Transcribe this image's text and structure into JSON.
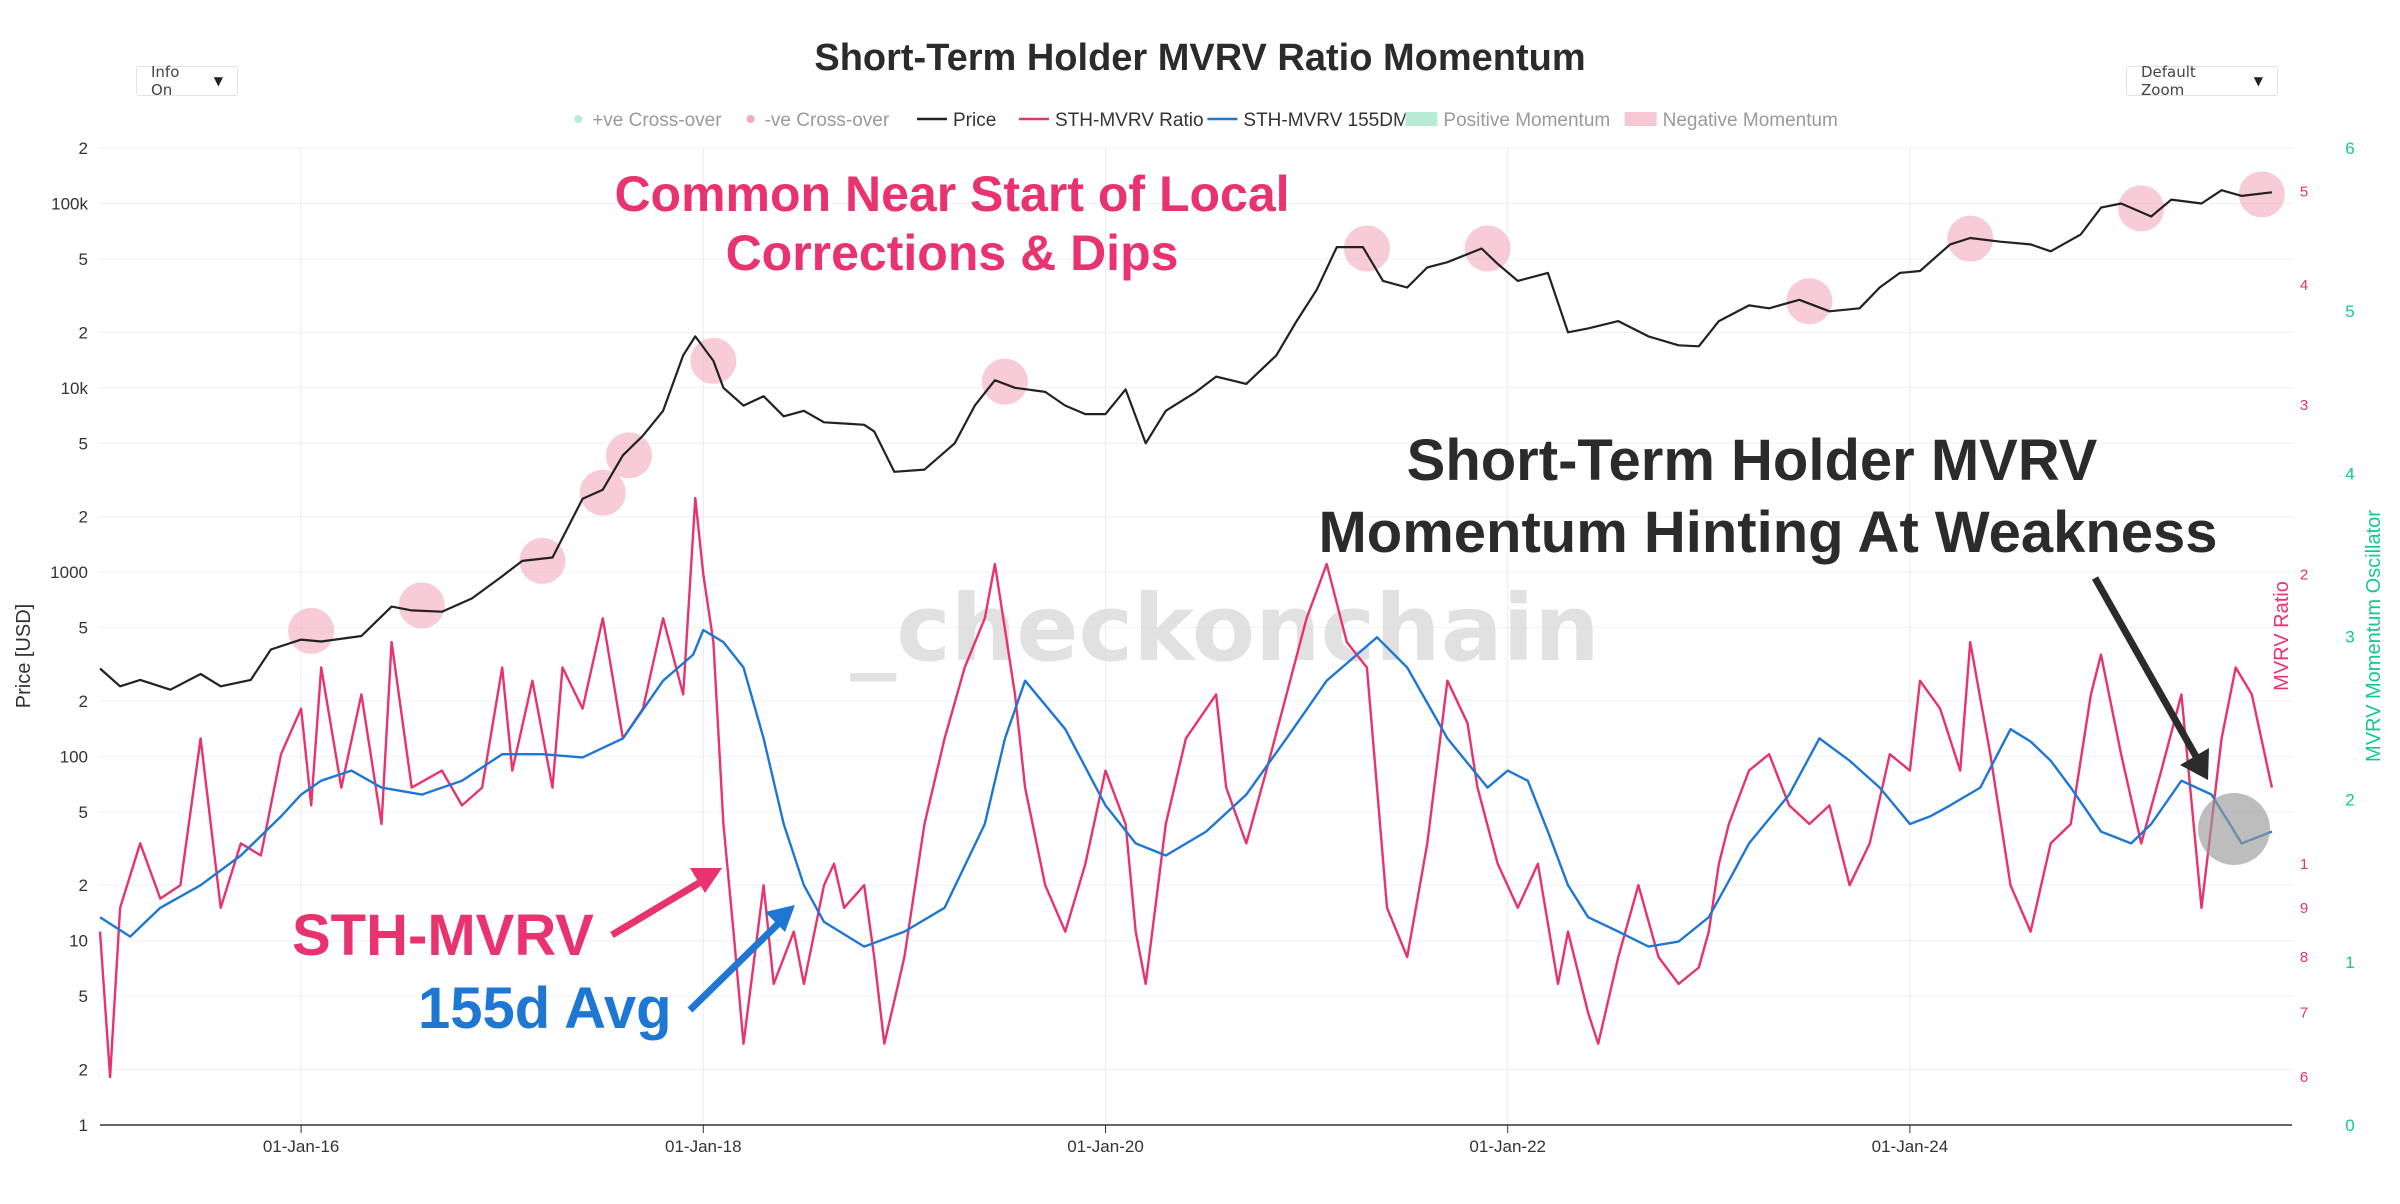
{
  "controls": {
    "info_label": "Info On",
    "zoom_label": "Default Zoom",
    "dropdown_glyph": "▼"
  },
  "chart_data": {
    "type": "line",
    "title": "Short-Term Holder MVRV Ratio Momentum",
    "watermark": "_checkonchain",
    "legend": [
      {
        "label": "+ve Cross-over",
        "kind": "dot",
        "color": "#b8ecd9"
      },
      {
        "label": "-ve Cross-over",
        "kind": "dot",
        "color": "#f7a8c0"
      },
      {
        "label": "Price",
        "kind": "line",
        "color": "#222222"
      },
      {
        "label": "STH-MVRV Ratio",
        "kind": "line",
        "color": "#e8336e"
      },
      {
        "label": "STH-MVRV 155DMA",
        "kind": "line",
        "color": "#1f77d4"
      },
      {
        "label": "Positive Momentum",
        "kind": "box",
        "color": "#b8ecd9"
      },
      {
        "label": "Negative Momentum",
        "kind": "box",
        "color": "#f7c7d6"
      }
    ],
    "legend_placement": "top",
    "grid": true,
    "colors": {
      "price": "#222222",
      "mvrv": "#e8336e",
      "dma": "#1f77d4",
      "oscillator_axis": "#14c98a",
      "negative_marker": "#f4a9c0",
      "annotation_pink": "#e8336e",
      "annotation_blue": "#1f77d4",
      "annotation_dark": "#2b2b2b"
    },
    "x_axis": {
      "tick_labels": [
        "01-Jan-16",
        "01-Jan-18",
        "01-Jan-20",
        "01-Jan-22",
        "01-Jan-24"
      ],
      "tick_years": [
        2016,
        2018,
        2020,
        2022,
        2024
      ],
      "range": [
        2015.0,
        2025.9
      ]
    },
    "y_left": {
      "label": "Price [USD]",
      "scale": "log",
      "range": [
        1,
        200000
      ],
      "ticks": [
        {
          "v": 1,
          "t": "1"
        },
        {
          "v": 2,
          "t": "2"
        },
        {
          "v": 5,
          "t": "5"
        },
        {
          "v": 10,
          "t": "10"
        },
        {
          "v": 20,
          "t": "2"
        },
        {
          "v": 50,
          "t": "5"
        },
        {
          "v": 100,
          "t": "100"
        },
        {
          "v": 200,
          "t": "2"
        },
        {
          "v": 500,
          "t": "5"
        },
        {
          "v": 1000,
          "t": "1000"
        },
        {
          "v": 2000,
          "t": "2"
        },
        {
          "v": 5000,
          "t": "5"
        },
        {
          "v": 10000,
          "t": "10k"
        },
        {
          "v": 20000,
          "t": "2"
        },
        {
          "v": 50000,
          "t": "5"
        },
        {
          "v": 100000,
          "t": "100k"
        },
        {
          "v": 200000,
          "t": "2"
        }
      ]
    },
    "y_right1": {
      "label": "MVRV Ratio",
      "scale": "log",
      "range": [
        0.535,
        5.55
      ],
      "ticks": [
        {
          "v": 0.6,
          "t": "6"
        },
        {
          "v": 0.7,
          "t": "7"
        },
        {
          "v": 0.8,
          "t": "8"
        },
        {
          "v": 0.9,
          "t": "9"
        },
        {
          "v": 1,
          "t": "1"
        },
        {
          "v": 2,
          "t": "2"
        },
        {
          "v": 3,
          "t": "3"
        },
        {
          "v": 4,
          "t": "4"
        },
        {
          "v": 5,
          "t": "5"
        }
      ]
    },
    "y_right2": {
      "label": "MVRV Momentum Oscillator",
      "range": [
        0,
        6
      ],
      "ticks": [
        {
          "v": 0,
          "t": "0"
        },
        {
          "v": 1,
          "t": "1"
        },
        {
          "v": 2,
          "t": "2"
        },
        {
          "v": 3,
          "t": "3"
        },
        {
          "v": 4,
          "t": "4"
        },
        {
          "v": 5,
          "t": "5"
        },
        {
          "v": 6,
          "t": "6"
        }
      ]
    },
    "series": [
      {
        "name": "Price",
        "x": [
          2015.0,
          2015.1,
          2015.2,
          2015.35,
          2015.5,
          2015.6,
          2015.75,
          2015.85,
          2016.0,
          2016.1,
          2016.3,
          2016.45,
          2016.55,
          2016.7,
          2016.85,
          2017.0,
          2017.1,
          2017.25,
          2017.4,
          2017.5,
          2017.6,
          2017.7,
          2017.8,
          2017.9,
          2017.96,
          2018.05,
          2018.1,
          2018.2,
          2018.3,
          2018.4,
          2018.5,
          2018.6,
          2018.7,
          2018.8,
          2018.85,
          2018.95,
          2019.1,
          2019.25,
          2019.35,
          2019.45,
          2019.55,
          2019.7,
          2019.8,
          2019.9,
          2020.0,
          2020.1,
          2020.2,
          2020.3,
          2020.45,
          2020.55,
          2020.7,
          2020.85,
          2020.95,
          2021.05,
          2021.15,
          2021.28,
          2021.38,
          2021.5,
          2021.6,
          2021.7,
          2021.87,
          2021.95,
          2022.05,
          2022.2,
          2022.3,
          2022.4,
          2022.55,
          2022.7,
          2022.85,
          2022.95,
          2023.05,
          2023.2,
          2023.3,
          2023.45,
          2023.6,
          2023.75,
          2023.85,
          2023.95,
          2024.05,
          2024.2,
          2024.3,
          2024.45,
          2024.6,
          2024.7,
          2024.85,
          2024.95,
          2025.05,
          2025.2,
          2025.3,
          2025.45,
          2025.55,
          2025.65,
          2025.8
        ],
        "values": [
          300,
          240,
          260,
          230,
          280,
          240,
          260,
          380,
          430,
          420,
          450,
          650,
          620,
          610,
          720,
          950,
          1150,
          1200,
          2500,
          2800,
          4300,
          5500,
          7500,
          15000,
          19000,
          14000,
          10000,
          8000,
          9000,
          7000,
          7500,
          6500,
          6400,
          6300,
          5800,
          3500,
          3600,
          5000,
          8000,
          11000,
          10000,
          9500,
          8000,
          7200,
          7200,
          9800,
          5000,
          7500,
          9500,
          11500,
          10500,
          15000,
          23000,
          34000,
          58000,
          58000,
          38000,
          35000,
          45000,
          48000,
          57000,
          47000,
          38000,
          42000,
          20000,
          21000,
          23000,
          19000,
          17000,
          16800,
          23000,
          28000,
          27000,
          30000,
          26000,
          27000,
          35000,
          42000,
          43000,
          60000,
          65000,
          62000,
          60000,
          55000,
          68000,
          95000,
          100000,
          85000,
          105000,
          100000,
          118000,
          110000,
          115000
        ]
      },
      {
        "name": "STH-MVRV Ratio",
        "x": [
          2015.0,
          2015.05,
          2015.1,
          2015.2,
          2015.3,
          2015.4,
          2015.5,
          2015.6,
          2015.7,
          2015.8,
          2015.9,
          2016.0,
          2016.05,
          2016.1,
          2016.2,
          2016.3,
          2016.4,
          2016.45,
          2016.55,
          2016.7,
          2016.8,
          2016.9,
          2017.0,
          2017.05,
          2017.15,
          2017.25,
          2017.3,
          2017.4,
          2017.5,
          2017.6,
          2017.7,
          2017.8,
          2017.9,
          2017.96,
          2018.0,
          2018.05,
          2018.1,
          2018.15,
          2018.2,
          2018.3,
          2018.35,
          2018.45,
          2018.5,
          2018.6,
          2018.65,
          2018.7,
          2018.8,
          2018.85,
          2018.9,
          2018.95,
          2019.0,
          2019.1,
          2019.2,
          2019.3,
          2019.4,
          2019.45,
          2019.55,
          2019.6,
          2019.7,
          2019.8,
          2019.9,
          2020.0,
          2020.1,
          2020.15,
          2020.2,
          2020.3,
          2020.4,
          2020.55,
          2020.6,
          2020.7,
          2020.8,
          2020.9,
          2021.0,
          2021.1,
          2021.2,
          2021.3,
          2021.35,
          2021.4,
          2021.5,
          2021.6,
          2021.7,
          2021.8,
          2021.85,
          2021.95,
          2022.05,
          2022.15,
          2022.25,
          2022.3,
          2022.4,
          2022.45,
          2022.55,
          2022.65,
          2022.75,
          2022.85,
          2022.95,
          2023.0,
          2023.05,
          2023.1,
          2023.2,
          2023.3,
          2023.4,
          2023.5,
          2023.6,
          2023.7,
          2023.8,
          2023.9,
          2024.0,
          2024.05,
          2024.15,
          2024.25,
          2024.3,
          2024.4,
          2024.5,
          2024.6,
          2024.7,
          2024.8,
          2024.9,
          2024.95,
          2025.05,
          2025.15,
          2025.25,
          2025.35,
          2025.45,
          2025.55,
          2025.62,
          2025.7,
          2025.8
        ],
        "values": [
          0.85,
          0.6,
          0.9,
          1.05,
          0.92,
          0.95,
          1.35,
          0.9,
          1.05,
          1.02,
          1.3,
          1.45,
          1.15,
          1.6,
          1.2,
          1.5,
          1.1,
          1.7,
          1.2,
          1.25,
          1.15,
          1.2,
          1.6,
          1.25,
          1.55,
          1.2,
          1.6,
          1.45,
          1.8,
          1.35,
          1.45,
          1.8,
          1.5,
          2.4,
          2.0,
          1.7,
          1.1,
          0.85,
          0.65,
          0.95,
          0.75,
          0.85,
          0.75,
          0.95,
          1.0,
          0.9,
          0.95,
          0.8,
          0.65,
          0.72,
          0.8,
          1.1,
          1.35,
          1.6,
          1.8,
          2.05,
          1.5,
          1.2,
          0.95,
          0.85,
          1.0,
          1.25,
          1.1,
          0.85,
          0.75,
          1.1,
          1.35,
          1.5,
          1.2,
          1.05,
          1.25,
          1.5,
          1.8,
          2.05,
          1.7,
          1.6,
          1.2,
          0.9,
          0.8,
          1.05,
          1.55,
          1.4,
          1.2,
          1.0,
          0.9,
          1.0,
          0.75,
          0.85,
          0.7,
          0.65,
          0.8,
          0.95,
          0.8,
          0.75,
          0.78,
          0.85,
          1.0,
          1.1,
          1.25,
          1.3,
          1.15,
          1.1,
          1.15,
          0.95,
          1.05,
          1.3,
          1.25,
          1.55,
          1.45,
          1.25,
          1.7,
          1.3,
          0.95,
          0.85,
          1.05,
          1.1,
          1.5,
          1.65,
          1.3,
          1.05,
          1.25,
          1.5,
          0.9,
          1.35,
          1.6,
          1.5,
          1.2
        ]
      },
      {
        "name": "STH-MVRV 155DMA",
        "x": [
          2015.0,
          2015.15,
          2015.3,
          2015.5,
          2015.7,
          2015.9,
          2016.0,
          2016.1,
          2016.25,
          2016.4,
          2016.6,
          2016.8,
          2017.0,
          2017.2,
          2017.4,
          2017.6,
          2017.8,
          2017.95,
          2018.0,
          2018.1,
          2018.2,
          2018.3,
          2018.4,
          2018.5,
          2018.6,
          2018.8,
          2019.0,
          2019.2,
          2019.4,
          2019.5,
          2019.6,
          2019.8,
          2020.0,
          2020.15,
          2020.3,
          2020.5,
          2020.7,
          2020.9,
          2021.1,
          2021.25,
          2021.35,
          2021.5,
          2021.7,
          2021.9,
          2022.0,
          2022.1,
          2022.2,
          2022.3,
          2022.4,
          2022.55,
          2022.7,
          2022.85,
          2023.0,
          2023.1,
          2023.2,
          2023.4,
          2023.55,
          2023.7,
          2023.85,
          2024.0,
          2024.1,
          2024.2,
          2024.35,
          2024.5,
          2024.6,
          2024.7,
          2024.8,
          2024.95,
          2025.1,
          2025.2,
          2025.35,
          2025.5,
          2025.65,
          2025.8
        ],
        "values": [
          0.88,
          0.84,
          0.9,
          0.95,
          1.02,
          1.12,
          1.18,
          1.22,
          1.25,
          1.2,
          1.18,
          1.22,
          1.3,
          1.3,
          1.29,
          1.35,
          1.55,
          1.65,
          1.75,
          1.7,
          1.6,
          1.35,
          1.1,
          0.95,
          0.87,
          0.82,
          0.85,
          0.9,
          1.1,
          1.35,
          1.55,
          1.38,
          1.15,
          1.05,
          1.02,
          1.08,
          1.18,
          1.35,
          1.55,
          1.65,
          1.72,
          1.6,
          1.35,
          1.2,
          1.25,
          1.22,
          1.08,
          0.95,
          0.88,
          0.85,
          0.82,
          0.83,
          0.88,
          0.96,
          1.05,
          1.18,
          1.35,
          1.28,
          1.2,
          1.1,
          1.12,
          1.15,
          1.2,
          1.38,
          1.34,
          1.28,
          1.2,
          1.08,
          1.05,
          1.1,
          1.22,
          1.18,
          1.05,
          1.08
        ]
      }
    ],
    "negative_crossover_markers": [
      {
        "x": 2016.05,
        "price": 480
      },
      {
        "x": 2016.6,
        "price": 660
      },
      {
        "x": 2017.2,
        "price": 1150
      },
      {
        "x": 2017.5,
        "price": 2700
      },
      {
        "x": 2017.63,
        "price": 4300
      },
      {
        "x": 2018.05,
        "price": 14000
      },
      {
        "x": 2019.5,
        "price": 10800
      },
      {
        "x": 2021.3,
        "price": 57000
      },
      {
        "x": 2021.9,
        "price": 57000
      },
      {
        "x": 2023.5,
        "price": 29500
      },
      {
        "x": 2024.3,
        "price": 64500
      },
      {
        "x": 2025.15,
        "price": 94000
      },
      {
        "x": 2025.75,
        "price": 112000
      }
    ],
    "annotations": {
      "dips_line1": "Common Near Start of Local",
      "dips_line2": "Corrections & Dips",
      "weakness_line1": "Short-Term Holder MVRV",
      "weakness_line2": "Momentum Hinting At Weakness",
      "sth_label": "STH-MVRV",
      "avg_label": "155d Avg"
    }
  }
}
